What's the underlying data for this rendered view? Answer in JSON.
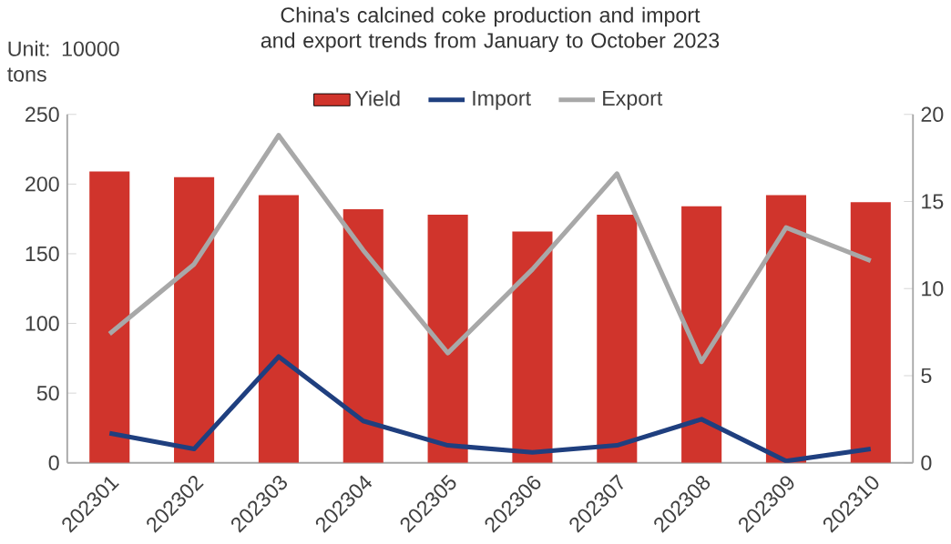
{
  "chart_data": {
    "type": "bar",
    "title": "China's calcined coke production and import and export trends from January to October 2023",
    "ylabel": "Unit: 10000 tons",
    "categories": [
      "202301",
      "202302",
      "202303",
      "202304",
      "202305",
      "202306",
      "202307",
      "202308",
      "202309",
      "202310"
    ],
    "series": [
      {
        "name": "Yield",
        "color": "#d0342c",
        "values": [
          209,
          205,
          192,
          182,
          178,
          166,
          178,
          184,
          192,
          187
        ]
      },
      {
        "name": "Import",
        "type": "line",
        "axis": "y2",
        "color": "#1f3f7f",
        "values": [
          1.7,
          0.8,
          6.1,
          2.4,
          1.0,
          0.6,
          1.0,
          2.5,
          0.1,
          0.8
        ]
      },
      {
        "name": "Export",
        "type": "line",
        "axis": "y2",
        "color": "#a8a8a8",
        "values": [
          7.4,
          11.4,
          18.8,
          12.2,
          6.3,
          11.1,
          16.6,
          5.8,
          13.5,
          11.6
        ]
      }
    ],
    "ylim": [
      0,
      250
    ],
    "yticks": [
      0,
      50,
      100,
      150,
      200,
      250
    ],
    "y2lim": [
      0,
      20
    ],
    "y2ticks": [
      0,
      5,
      10,
      15,
      20
    ],
    "legend": "top",
    "grid": false,
    "marker": "none",
    "line_style": "solid"
  }
}
